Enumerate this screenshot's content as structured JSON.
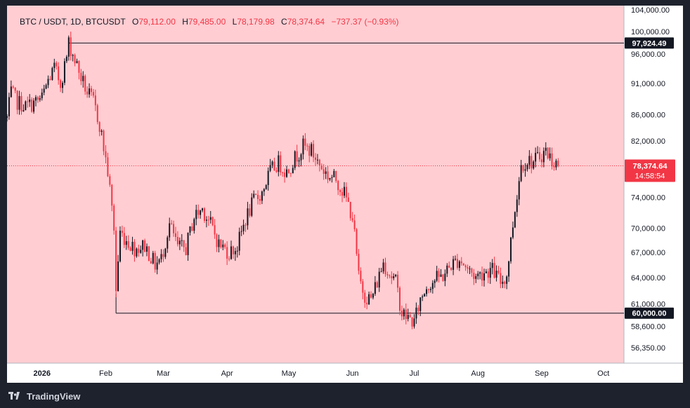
{
  "header": {
    "symbol": "BTC / USDT, 1D, BTCUSDT",
    "open_label": "O",
    "open_value": "79,112.00",
    "high_label": "H",
    "high_value": "79,485.00",
    "low_label": "L",
    "low_value": "78,179.98",
    "close_label": "C",
    "close_value": "78,374.64",
    "change": "−737.37 (−0.93%)"
  },
  "footer": {
    "brand": "TradingView",
    "logo_icon": "tradingview-logo-icon"
  },
  "colors": {
    "background": "#ffcdd2",
    "frame": "#ffffff",
    "up": "#131722",
    "down": "#f23645",
    "level_line": "#131722",
    "price_line": "#f23645"
  },
  "price_labels": {
    "top_level": "97,924.49",
    "bottom_level": "60,000.00",
    "current_price": "78,374.64",
    "countdown": "14:58:54"
  },
  "chart_data": {
    "type": "candlestick",
    "title": "",
    "xlabel": "",
    "ylabel": "",
    "y_scale": "log",
    "ylim": [
      54800,
      104800
    ],
    "grid": false,
    "y_ticks": [
      "104,000.00",
      "100,000.00",
      "96,000.00",
      "91,000.00",
      "86,000.00",
      "82,000.00",
      "74,000.00",
      "70,000.00",
      "67,000.00",
      "64,000.00",
      "61,000.00",
      "58,600.00",
      "56,350.00"
    ],
    "y_tick_values": [
      104000,
      100000,
      96000,
      91000,
      86000,
      82000,
      74000,
      70000,
      67000,
      64000,
      61000,
      58600,
      56350
    ],
    "x_ticks": [
      "2026",
      "Feb",
      "Mar",
      "Apr",
      "May",
      "Jun",
      "Jul",
      "Aug",
      "Sep",
      "Oct"
    ],
    "x_tick_dates": [
      "2026-01-01",
      "2026-02-01",
      "2026-03-01",
      "2026-04-01",
      "2026-05-01",
      "2026-06-01",
      "2026-07-01",
      "2026-08-01",
      "2026-09-01",
      "2026-10-01"
    ],
    "x_range": [
      "2025-12-15",
      "2026-10-11"
    ],
    "levels": [
      {
        "value": 97924.49,
        "from": "2026-01-14",
        "label": "97,924.49"
      },
      {
        "value": 60000.0,
        "from": "2026-02-06",
        "label": "60,000.00"
      }
    ],
    "last_price": 78374.64,
    "price_path": [
      [
        "2025-12-15",
        85500
      ],
      [
        "2025-12-17",
        89500
      ],
      [
        "2025-12-20",
        88000
      ],
      [
        "2025-12-24",
        87300
      ],
      [
        "2025-12-28",
        87800
      ],
      [
        "2026-01-01",
        88600
      ],
      [
        "2026-01-04",
        91500
      ],
      [
        "2026-01-07",
        93500
      ],
      [
        "2026-01-10",
        91000
      ],
      [
        "2026-01-13",
        95500
      ],
      [
        "2026-01-14",
        97924
      ],
      [
        "2026-01-17",
        95000
      ],
      [
        "2026-01-20",
        92000
      ],
      [
        "2026-01-23",
        89500
      ],
      [
        "2026-01-26",
        88000
      ],
      [
        "2026-01-29",
        84500
      ],
      [
        "2026-02-02",
        77500
      ],
      [
        "2026-02-05",
        70000
      ],
      [
        "2026-02-06",
        62500
      ],
      [
        "2026-02-08",
        69500
      ],
      [
        "2026-02-11",
        68500
      ],
      [
        "2026-02-15",
        67500
      ],
      [
        "2026-02-20",
        67800
      ],
      [
        "2026-02-25",
        65500
      ],
      [
        "2026-02-28",
        66200
      ],
      [
        "2026-03-04",
        70500
      ],
      [
        "2026-03-08",
        67600
      ],
      [
        "2026-03-12",
        67500
      ],
      [
        "2026-03-16",
        71500
      ],
      [
        "2026-03-20",
        72500
      ],
      [
        "2026-03-24",
        70500
      ],
      [
        "2026-03-28",
        68000
      ],
      [
        "2026-04-02",
        67000
      ],
      [
        "2026-04-06",
        67700
      ],
      [
        "2026-04-10",
        71200
      ],
      [
        "2026-04-14",
        73500
      ],
      [
        "2026-04-18",
        74700
      ],
      [
        "2026-04-22",
        77600
      ],
      [
        "2026-04-26",
        78800
      ],
      [
        "2026-04-30",
        77500
      ],
      [
        "2026-05-04",
        79500
      ],
      [
        "2026-05-08",
        81200
      ],
      [
        "2026-05-12",
        80500
      ],
      [
        "2026-05-16",
        78500
      ],
      [
        "2026-05-20",
        77000
      ],
      [
        "2026-05-24",
        76500
      ],
      [
        "2026-05-28",
        74500
      ],
      [
        "2026-06-01",
        71500
      ],
      [
        "2026-06-04",
        64000
      ],
      [
        "2026-06-07",
        62000
      ],
      [
        "2026-06-10",
        61500
      ],
      [
        "2026-06-13",
        63500
      ],
      [
        "2026-06-16",
        65800
      ],
      [
        "2026-06-19",
        64500
      ],
      [
        "2026-06-22",
        63500
      ],
      [
        "2026-06-25",
        60000
      ],
      [
        "2026-06-28",
        59500
      ],
      [
        "2026-07-01",
        59000
      ],
      [
        "2026-07-04",
        61500
      ],
      [
        "2026-07-07",
        63000
      ],
      [
        "2026-07-11",
        63800
      ],
      [
        "2026-07-15",
        64200
      ],
      [
        "2026-07-19",
        65500
      ],
      [
        "2026-07-23",
        66200
      ],
      [
        "2026-07-27",
        65000
      ],
      [
        "2026-07-31",
        64100
      ],
      [
        "2026-08-04",
        64700
      ],
      [
        "2026-08-08",
        64900
      ],
      [
        "2026-08-12",
        63500
      ],
      [
        "2026-08-15",
        64200
      ],
      [
        "2026-08-18",
        70500
      ],
      [
        "2026-08-20",
        74500
      ],
      [
        "2026-08-22",
        78500
      ],
      [
        "2026-08-25",
        79200
      ],
      [
        "2026-08-28",
        78900
      ],
      [
        "2026-08-31",
        79800
      ],
      [
        "2026-09-03",
        80500
      ],
      [
        "2026-09-06",
        79200
      ],
      [
        "2026-09-09",
        78374.64
      ]
    ]
  }
}
